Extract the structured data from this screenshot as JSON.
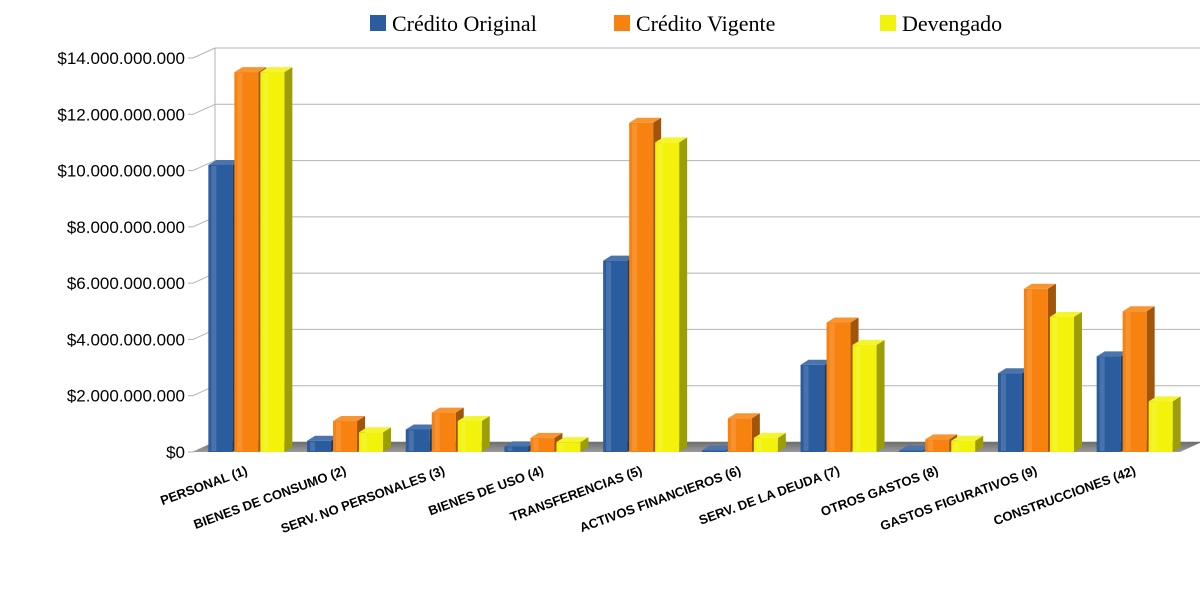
{
  "chart_data": {
    "type": "bar",
    "title": "",
    "xlabel": "",
    "ylabel": "",
    "ylim": [
      0,
      14000000000
    ],
    "y_ticks": [
      {
        "value": 0,
        "label": "$0"
      },
      {
        "value": 2000000000,
        "label": "$2.000.000.000"
      },
      {
        "value": 4000000000,
        "label": "$4.000.000.000"
      },
      {
        "value": 6000000000,
        "label": "$6.000.000.000"
      },
      {
        "value": 8000000000,
        "label": "$8.000.000.000"
      },
      {
        "value": 10000000000,
        "label": "$10.000.000.000"
      },
      {
        "value": 12000000000,
        "label": "$12.000.000.000"
      },
      {
        "value": 14000000000,
        "label": "$14.000.000.000"
      }
    ],
    "grid": true,
    "legend_position": "top",
    "categories": [
      "PERSONAL (1)",
      "BIENES DE CONSUMO (2)",
      "SERV. NO PERSONALES (3)",
      "BIENES DE USO (4)",
      "TRANSFERENCIAS (5)",
      "ACTIVOS FINANCIEROS (6)",
      "SERV. DE LA DEUDA (7)",
      "OTROS GASTOS (8)",
      "GASTOS FIGURATIVOS (9)",
      "CONSTRUCCIONES (42)"
    ],
    "series": [
      {
        "name": "Crédito Original",
        "color": "#2b5c9e",
        "values": [
          10200000000,
          400000000,
          800000000,
          200000000,
          6800000000,
          50000000,
          3100000000,
          30000000,
          2800000000,
          3400000000
        ]
      },
      {
        "name": "Crédito Vigente",
        "color": "#f7820f",
        "values": [
          13500000000,
          1100000000,
          1400000000,
          500000000,
          11700000000,
          1200000000,
          4600000000,
          450000000,
          5800000000,
          5000000000
        ]
      },
      {
        "name": "Devengado",
        "color": "#f2f20a",
        "values": [
          13500000000,
          700000000,
          1100000000,
          350000000,
          11000000000,
          500000000,
          3800000000,
          400000000,
          4800000000,
          1800000000
        ]
      }
    ]
  }
}
